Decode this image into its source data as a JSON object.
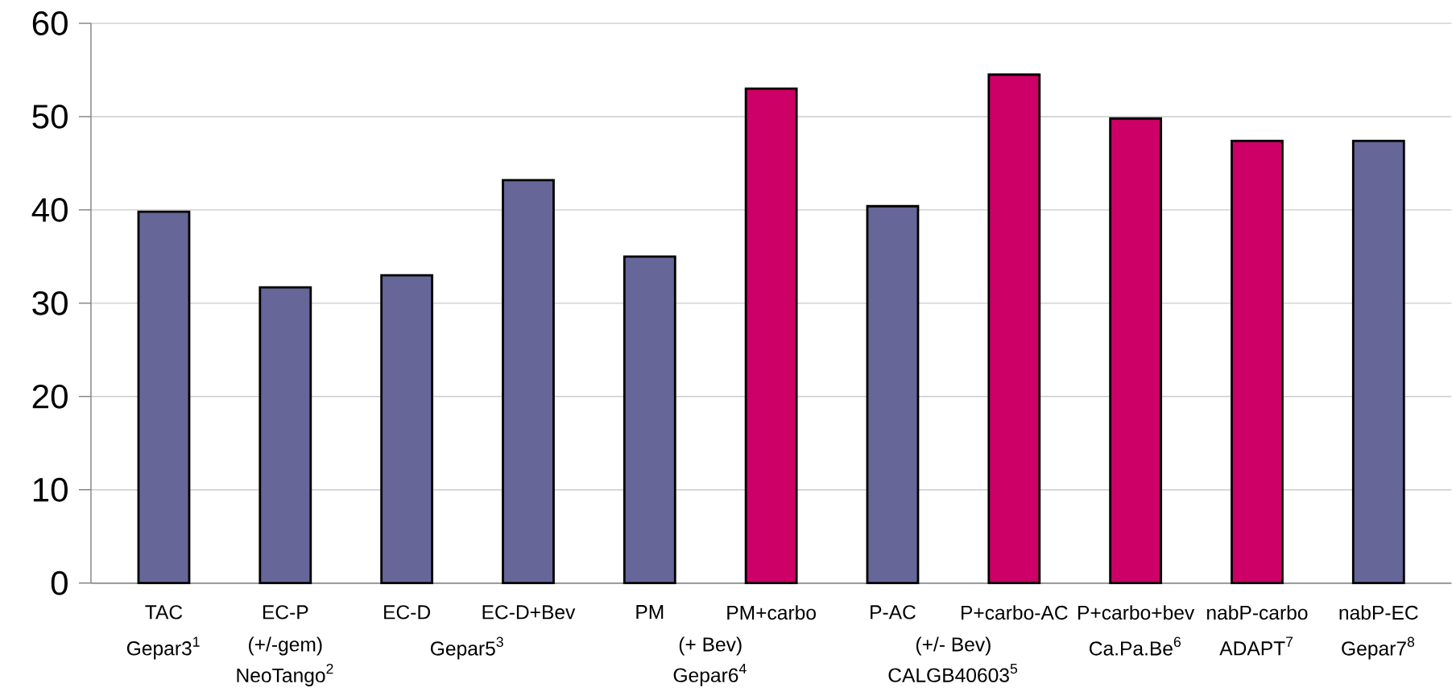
{
  "chart_data": {
    "type": "bar",
    "categories": [
      "TAC",
      "EC-P",
      "EC-D",
      "EC-D+Bev",
      "PM",
      "PM+carbo",
      "P-AC",
      "P+carbo-AC",
      "P+carbo+bev",
      "nabP-carbo",
      "nabP-EC"
    ],
    "values": [
      39.8,
      31.7,
      33,
      43.2,
      35,
      53,
      40.4,
      54.5,
      49.8,
      47.4,
      47.4
    ],
    "colors": [
      "#666699",
      "#666699",
      "#666699",
      "#666699",
      "#666699",
      "#cc0066",
      "#666699",
      "#cc0066",
      "#cc0066",
      "#cc0066",
      "#666699"
    ],
    "ylim": [
      0,
      60
    ],
    "yticks": [
      0,
      10,
      20,
      30,
      40,
      50,
      60
    ],
    "grid": "y",
    "annotations": [
      "Gepar3$^{1}$",
      "(+/-gem)",
      "NeoTango$^{2}$",
      "Gepar5$^{3}$",
      "(+ Bev)",
      "Gepar6$^{4}$",
      "(+/- Bev)",
      "CALGB40603$^{5}$",
      "Ca.Pa.Be$^{6}$",
      "ADAPT$^{7}$",
      "Gepar7$^{8}$"
    ]
  }
}
